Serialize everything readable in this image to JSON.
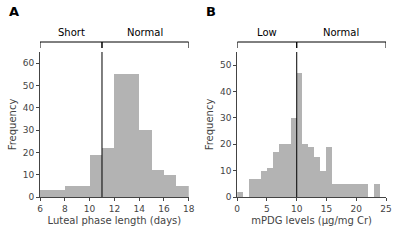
{
  "chart_data": [
    {
      "type": "histogram",
      "title": "A",
      "xlabel": "Luteal phase length (days)",
      "ylabel": "Frequency",
      "bins": [
        6,
        7,
        8,
        9,
        10,
        11,
        12,
        13,
        14,
        15,
        16,
        17,
        18
      ],
      "values": [
        3,
        3,
        5,
        5,
        19,
        22,
        55,
        55,
        30,
        12,
        10,
        5
      ],
      "color": "#b3b3b3",
      "vline_x": 11,
      "annotations": [
        "Short",
        "Normal"
      ],
      "xlim": [
        6,
        18
      ],
      "ylim": [
        0,
        65
      ],
      "xticks": [
        6,
        8,
        10,
        12,
        14,
        16,
        18
      ],
      "yticks": [
        0,
        10,
        20,
        30,
        40,
        50,
        60
      ],
      "grid": false
    },
    {
      "type": "histogram",
      "title": "B",
      "xlabel": "mPDG levels (µg/mg Cr)",
      "ylabel": "Frequency",
      "bins": [
        0,
        1,
        2,
        3,
        4,
        5,
        6,
        7,
        8,
        9,
        10,
        11,
        12,
        13,
        14,
        15,
        16,
        17,
        18,
        19,
        20,
        21,
        22,
        23,
        24,
        25
      ],
      "values": [
        2,
        0,
        7,
        7,
        10,
        11,
        17,
        20,
        20,
        30,
        47,
        20,
        19,
        15,
        10,
        19,
        5,
        5,
        5,
        5,
        5,
        5,
        0,
        5,
        0
      ],
      "color": "#b3b3b3",
      "vline_x": 10,
      "annotations": [
        "Low",
        "Normal"
      ],
      "xlim": [
        0,
        25
      ],
      "ylim": [
        0,
        55
      ],
      "xticks": [
        0,
        5,
        10,
        15,
        20,
        25
      ],
      "yticks": [
        0,
        10,
        20,
        30,
        40,
        50
      ],
      "grid": false
    }
  ]
}
